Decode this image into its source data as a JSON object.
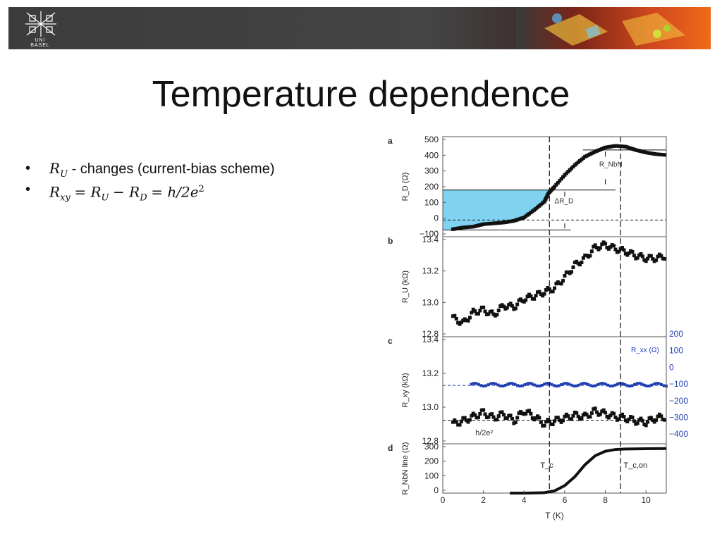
{
  "header": {
    "logo_text": "UNI BASEL"
  },
  "slide": {
    "title": "Temperature dependence",
    "bullets": [
      {
        "var": "R",
        "sub": "U",
        "text": " - changes (current-bias scheme)"
      },
      {
        "lhs": "R",
        "lhs_sub": "xy",
        "r1": "R",
        "r1_sub": "U",
        "r2": "R",
        "r2_sub": "D",
        "rhs": "h/2e",
        "rhs_sup": "2"
      }
    ]
  },
  "colors": {
    "shade": "#7fd3f0",
    "blue_series": "#1f3fb4",
    "black": "#111111"
  },
  "chart_data": [
    {
      "panel": "a",
      "type": "scatter",
      "ylabel": "R_D (Ω)",
      "ylim": [
        -100,
        500
      ],
      "yticks": [
        "500",
        "400",
        "300",
        "200",
        "100",
        "0",
        "−100"
      ],
      "xlim": [
        0,
        11
      ],
      "series": [
        {
          "x": [
            0.5,
            1.0,
            1.5,
            2.0,
            2.5,
            3.0,
            3.5,
            4.0,
            4.5,
            5.0,
            5.2,
            5.5,
            6.0,
            6.5,
            7.0,
            7.5,
            8.0,
            8.5,
            9.0,
            9.5,
            10.0,
            10.5,
            11.0
          ],
          "values": [
            -55,
            -45,
            -40,
            -25,
            -20,
            -15,
            -5,
            15,
            60,
            110,
            160,
            200,
            270,
            330,
            380,
            410,
            435,
            445,
            440,
            420,
            405,
            395,
            390
          ]
        }
      ],
      "annotations": [
        "R_NbN",
        "ΔR_D"
      ]
    },
    {
      "panel": "b",
      "type": "scatter",
      "ylabel": "R_U (kΩ)",
      "ylim": [
        12.72,
        13.46
      ],
      "yticks": [
        "13.4",
        "13.2",
        "13.0",
        "12.8"
      ],
      "xlim": [
        0,
        11
      ],
      "series": [
        {
          "x": [
            0.5,
            1.0,
            1.5,
            2.0,
            2.5,
            3.0,
            3.5,
            4.0,
            4.5,
            5.0,
            5.5,
            6.0,
            6.5,
            7.0,
            7.5,
            8.0,
            8.5,
            9.0,
            9.5,
            10.0,
            10.5,
            11.0
          ],
          "values": [
            12.86,
            12.82,
            12.9,
            12.92,
            12.88,
            12.95,
            12.94,
            13.0,
            13.02,
            13.05,
            13.08,
            13.16,
            13.25,
            13.3,
            13.38,
            13.4,
            13.37,
            13.35,
            13.32,
            13.3,
            13.3,
            13.32
          ]
        }
      ]
    },
    {
      "panel": "c",
      "type": "scatter",
      "ylabel": "R_xy (kΩ)",
      "ylim": [
        12.74,
        13.49
      ],
      "yticks": [
        "13.4",
        "13.2",
        "13.0",
        "12.8"
      ],
      "y2label": "R_xx (Ω)",
      "y2ticks": [
        "200",
        "100",
        "0",
        "−100",
        "−200",
        "−300",
        "−400"
      ],
      "xlim": [
        0,
        11
      ],
      "series": [
        {
          "x": [
            0.5,
            1.0,
            1.5,
            2.0,
            2.5,
            3.0,
            3.5,
            4.0,
            4.5,
            5.0,
            5.5,
            6.0,
            6.5,
            7.0,
            7.5,
            8.0,
            8.5,
            9.0,
            9.5,
            10.0,
            10.5,
            11.0
          ],
          "values": [
            12.88,
            12.9,
            12.93,
            12.96,
            12.92,
            12.95,
            12.9,
            12.97,
            12.93,
            12.88,
            12.9,
            12.92,
            12.94,
            12.93,
            12.97,
            12.95,
            12.93,
            12.92,
            12.9,
            12.89,
            12.92,
            12.93
          ]
        },
        {
          "x": [
            1.4,
            2.0,
            3.0,
            4.0,
            5.0,
            6.0,
            7.0,
            8.0,
            9.0,
            10.0,
            11.0
          ],
          "values": [
            0,
            5,
            3,
            -2,
            0,
            2,
            0,
            -3,
            2,
            0,
            0
          ]
        }
      ],
      "annotations": [
        "h/2e²"
      ]
    },
    {
      "panel": "d",
      "type": "line",
      "ylabel": "R_NbN line (Ω)",
      "ylim": [
        0,
        330
      ],
      "yticks": [
        "300",
        "200",
        "100",
        "0"
      ],
      "xlabel": "T (K)",
      "xlim": [
        0,
        11
      ],
      "xticks": [
        "0",
        "2",
        "4",
        "6",
        "8",
        "10"
      ],
      "series": [
        {
          "x": [
            3.3,
            4.0,
            5.0,
            5.5,
            6.0,
            6.5,
            7.0,
            7.5,
            8.0,
            8.5,
            9.0,
            10.0,
            11.0
          ],
          "values": [
            0,
            0,
            3,
            15,
            50,
            110,
            190,
            250,
            280,
            292,
            295,
            297,
            298
          ]
        }
      ],
      "annotations": [
        "T_c",
        "T_c,on"
      ]
    }
  ]
}
